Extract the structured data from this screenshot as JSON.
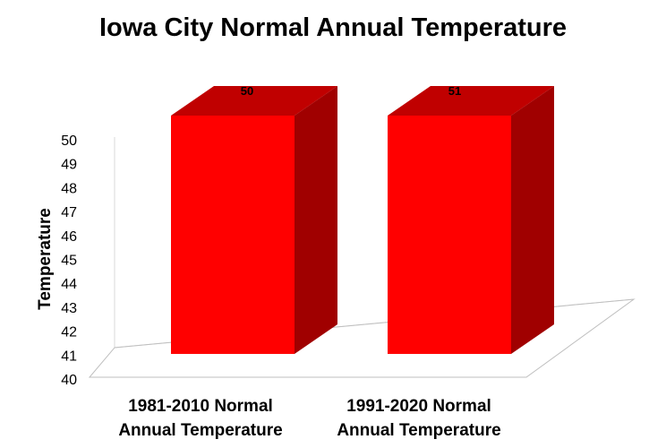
{
  "chart_data": {
    "type": "bar",
    "title": "Iowa City Normal Annual Temperature",
    "ylabel": "Temperature",
    "xlabel": "",
    "ylim": [
      40,
      50
    ],
    "yticks": [
      40,
      41,
      42,
      43,
      44,
      45,
      46,
      47,
      48,
      49,
      50
    ],
    "categories": [
      [
        "1981-2010 Normal",
        "Annual Temperature"
      ],
      [
        "1991-2020 Normal",
        "Annual Temperature"
      ]
    ],
    "values": [
      50,
      51
    ],
    "data_labels": [
      "50",
      "51"
    ],
    "grid": false,
    "legend": "none",
    "style": "3d-column",
    "colors": {
      "front": "#ff0000",
      "top": "#c00000",
      "side": "#a00000",
      "floor_stroke": "#bfbfbf"
    }
  }
}
